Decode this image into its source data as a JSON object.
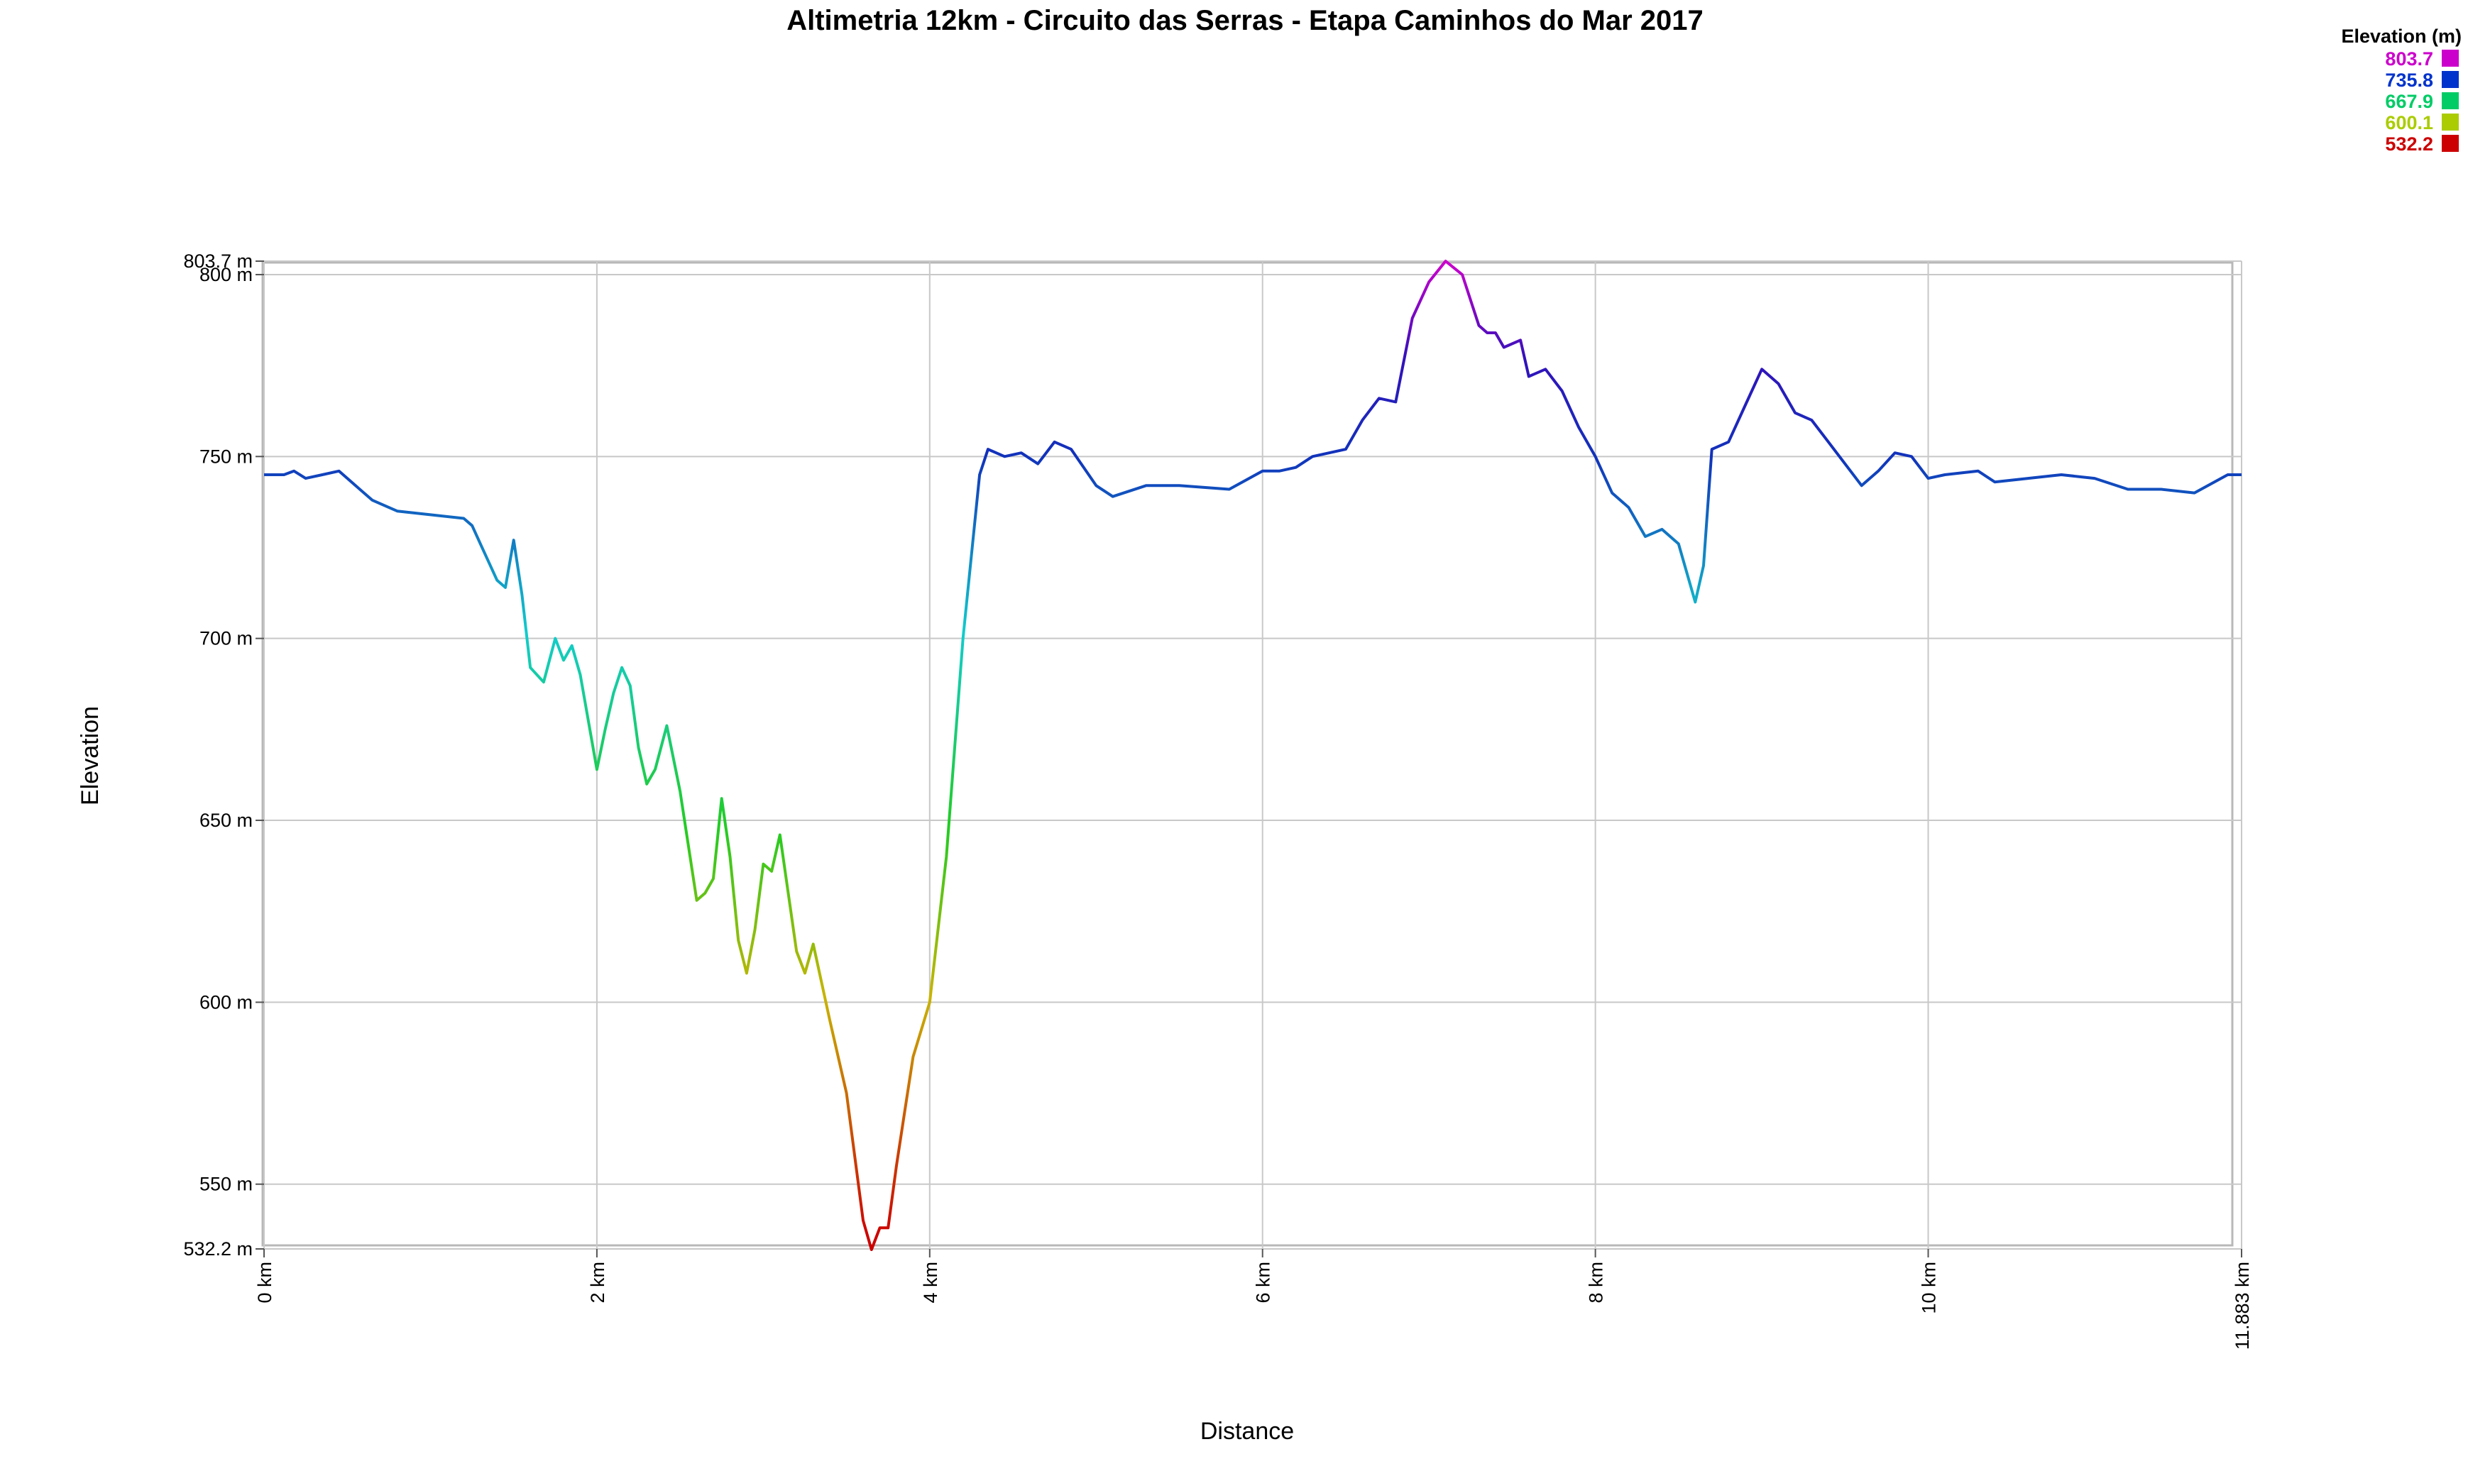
{
  "chart_data": {
    "type": "area",
    "title": "Altimetria 12km - Circuito das Serras - Etapa Caminhos do Mar 2017",
    "xlabel": "Distance",
    "ylabel": "Elevation",
    "xlim": [
      0,
      11.883
    ],
    "ylim": [
      532.2,
      803.7
    ],
    "grid": true,
    "x_ticks": [
      "0 km",
      "2 km",
      "4 km",
      "6 km",
      "8 km",
      "10 km",
      "11.883 km"
    ],
    "y_ticks": [
      "532.2 m",
      "550 m",
      "600 m",
      "650 m",
      "700 m",
      "750 m",
      "800 m",
      "803.7 m"
    ],
    "legend": {
      "title": "Elevation (m)",
      "position": "top-right",
      "entries": [
        {
          "label": "803.7",
          "color": "#cc00cc"
        },
        {
          "label": "735.8",
          "color": "#0033cc"
        },
        {
          "label": "667.9",
          "color": "#00cc66"
        },
        {
          "label": "600.1",
          "color": "#aacc00"
        },
        {
          "label": "532.2",
          "color": "#cc0000"
        }
      ]
    },
    "series": [
      {
        "x": [
          0,
          0.12,
          0.18,
          0.25,
          0.35,
          0.45,
          0.55,
          0.65,
          0.75,
          0.8,
          1.0,
          1.2,
          1.25,
          1.3,
          1.4,
          1.45,
          1.5,
          1.55,
          1.6,
          1.68,
          1.75,
          1.8,
          1.85,
          1.9,
          2.0,
          2.05,
          2.1,
          2.15,
          2.2,
          2.25,
          2.3,
          2.35,
          2.42,
          2.5,
          2.6,
          2.65,
          2.7,
          2.75,
          2.8,
          2.85,
          2.9,
          2.95,
          3.0,
          3.05,
          3.1,
          3.15,
          3.2,
          3.25,
          3.3,
          3.4,
          3.5,
          3.6,
          3.65,
          3.7,
          3.75,
          3.8,
          3.85,
          3.9,
          4.0,
          4.1,
          4.2,
          4.3,
          4.35,
          4.45,
          4.55,
          4.65,
          4.75,
          4.85,
          5.0,
          5.1,
          5.3,
          5.5,
          5.8,
          6.0,
          6.1,
          6.2,
          6.3,
          6.5,
          6.6,
          6.7,
          6.8,
          6.9,
          7.0,
          7.1,
          7.2,
          7.3,
          7.35,
          7.4,
          7.45,
          7.55,
          7.6,
          7.7,
          7.8,
          7.9,
          8.0,
          8.1,
          8.2,
          8.3,
          8.4,
          8.5,
          8.6,
          8.65,
          8.7,
          8.8,
          8.9,
          9.0,
          9.1,
          9.2,
          9.3,
          9.4,
          9.5,
          9.6,
          9.7,
          9.8,
          9.9,
          10.0,
          10.1,
          10.3,
          10.4,
          10.6,
          10.8,
          11.0,
          11.2,
          11.4,
          11.6,
          11.8,
          11.883
        ],
        "y": [
          745,
          745,
          746,
          744,
          745,
          746,
          742,
          738,
          736,
          735,
          734,
          733,
          731,
          726,
          716,
          714,
          727,
          712,
          692,
          688,
          700,
          694,
          698,
          690,
          664,
          675,
          685,
          692,
          687,
          670,
          660,
          664,
          676,
          658,
          628,
          630,
          634,
          656,
          640,
          617,
          608,
          620,
          638,
          636,
          646,
          630,
          614,
          608,
          616,
          595,
          575,
          540,
          532,
          538,
          538,
          555,
          570,
          585,
          600,
          640,
          700,
          745,
          752,
          750,
          751,
          748,
          754,
          752,
          742,
          739,
          742,
          742,
          741,
          746,
          746,
          747,
          750,
          752,
          760,
          766,
          765,
          788,
          798,
          803.7,
          800,
          786,
          784,
          784,
          780,
          782,
          772,
          774,
          768,
          758,
          750,
          740,
          736,
          728,
          730,
          726,
          710,
          720,
          752,
          754,
          764,
          774,
          770,
          762,
          760,
          754,
          748,
          742,
          746,
          751,
          750,
          744,
          745,
          746,
          743,
          744,
          745,
          744,
          741,
          741,
          740,
          745,
          745
        ]
      }
    ]
  }
}
